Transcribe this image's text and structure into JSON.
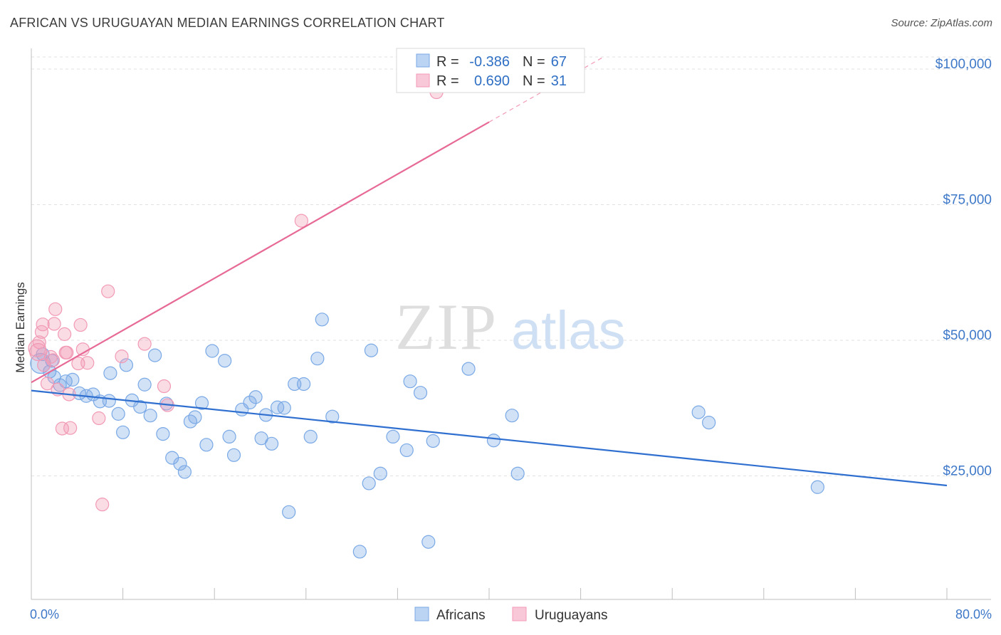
{
  "title": "AFRICAN VS URUGUAYAN MEDIAN EARNINGS CORRELATION CHART",
  "source": "Source: ZipAtlas.com",
  "watermark": {
    "zip": "ZIP",
    "atlas": "atlas"
  },
  "chart_data": {
    "type": "scatter",
    "ylabel": "Median Earnings",
    "xlim": [
      0,
      80
    ],
    "ylim": [
      0,
      105000
    ],
    "x_tick_labels": {
      "min": "0.0%",
      "max": "80.0%"
    },
    "y_ticks": [
      {
        "value": 25000,
        "label": "$25,000"
      },
      {
        "value": 50000,
        "label": "$50,000"
      },
      {
        "value": 75000,
        "label": "$75,000"
      },
      {
        "value": 100000,
        "label": "$100,000"
      }
    ],
    "grid": "horizontal dashed",
    "legend_top": [
      {
        "r_label": "R =",
        "r": "-0.386",
        "n_label": "N =",
        "n": "67",
        "color": "#7aa9e6"
      },
      {
        "r_label": "R =",
        "r": "0.690",
        "n_label": "N =",
        "n": "31",
        "color": "#f29ab5"
      }
    ],
    "series": [
      {
        "name": "Africans",
        "color": "#7aa9e6",
        "line_color": "#2f6fd0",
        "trend": {
          "x0": 0,
          "y0": 38500,
          "x1": 80,
          "y1": 21000
        },
        "points": [
          [
            0.8,
            43500
          ],
          [
            1.0,
            45200
          ],
          [
            1.6,
            42000
          ],
          [
            1.8,
            44000
          ],
          [
            2.0,
            41000
          ],
          [
            2.5,
            39500
          ],
          [
            3.0,
            40200
          ],
          [
            3.6,
            40500
          ],
          [
            4.2,
            38000
          ],
          [
            4.8,
            37500
          ],
          [
            5.4,
            37800
          ],
          [
            6.0,
            36500
          ],
          [
            6.8,
            36600
          ],
          [
            6.9,
            41700
          ],
          [
            7.6,
            34200
          ],
          [
            8.0,
            30800
          ],
          [
            8.3,
            43200
          ],
          [
            8.8,
            36700
          ],
          [
            9.5,
            35500
          ],
          [
            9.9,
            39600
          ],
          [
            10.4,
            33900
          ],
          [
            10.8,
            45000
          ],
          [
            11.5,
            30500
          ],
          [
            11.8,
            36100
          ],
          [
            12.3,
            26100
          ],
          [
            13.0,
            25000
          ],
          [
            13.4,
            23500
          ],
          [
            13.9,
            32800
          ],
          [
            14.3,
            33600
          ],
          [
            14.9,
            36200
          ],
          [
            15.3,
            28500
          ],
          [
            15.8,
            45800
          ],
          [
            16.9,
            44000
          ],
          [
            17.3,
            30000
          ],
          [
            17.7,
            26600
          ],
          [
            18.4,
            35000
          ],
          [
            19.1,
            36300
          ],
          [
            19.6,
            37300
          ],
          [
            20.1,
            29700
          ],
          [
            20.5,
            34000
          ],
          [
            21.0,
            28700
          ],
          [
            21.5,
            35400
          ],
          [
            22.1,
            35300
          ],
          [
            22.5,
            16100
          ],
          [
            23.0,
            39700
          ],
          [
            23.8,
            39700
          ],
          [
            24.4,
            30000
          ],
          [
            25.0,
            44400
          ],
          [
            25.4,
            51600
          ],
          [
            26.3,
            33700
          ],
          [
            28.7,
            8800
          ],
          [
            29.5,
            21400
          ],
          [
            29.7,
            45900
          ],
          [
            30.5,
            23200
          ],
          [
            31.6,
            30000
          ],
          [
            32.8,
            27500
          ],
          [
            33.1,
            40200
          ],
          [
            34.0,
            38100
          ],
          [
            34.7,
            10600
          ],
          [
            35.1,
            29200
          ],
          [
            38.2,
            42500
          ],
          [
            40.4,
            29300
          ],
          [
            42.0,
            33900
          ],
          [
            42.5,
            23200
          ],
          [
            58.3,
            34500
          ],
          [
            59.2,
            32600
          ],
          [
            68.7,
            20700
          ]
        ]
      },
      {
        "name": "Uruguayans",
        "color": "#f29ab5",
        "line_color": "#e76a96",
        "trend": {
          "x0": 0,
          "y0": 40000,
          "x1": 40,
          "y1": 88000
        },
        "trend_dash_to": {
          "x": 50,
          "y": 100000
        },
        "points": [
          [
            0.5,
            46300
          ],
          [
            0.6,
            45600
          ],
          [
            0.7,
            47400
          ],
          [
            0.9,
            49300
          ],
          [
            1.0,
            50700
          ],
          [
            1.1,
            43200
          ],
          [
            1.4,
            39800
          ],
          [
            1.7,
            44700
          ],
          [
            1.9,
            44100
          ],
          [
            2.0,
            50800
          ],
          [
            2.1,
            53500
          ],
          [
            2.3,
            38700
          ],
          [
            2.7,
            31500
          ],
          [
            2.9,
            48900
          ],
          [
            3.0,
            45500
          ],
          [
            3.1,
            45500
          ],
          [
            3.3,
            37800
          ],
          [
            3.4,
            31600
          ],
          [
            4.1,
            43500
          ],
          [
            4.3,
            50600
          ],
          [
            4.5,
            46100
          ],
          [
            4.9,
            43600
          ],
          [
            5.9,
            33400
          ],
          [
            6.2,
            17500
          ],
          [
            6.7,
            56800
          ],
          [
            7.9,
            44800
          ],
          [
            9.9,
            47100
          ],
          [
            11.6,
            39300
          ],
          [
            11.9,
            35800
          ],
          [
            23.6,
            69800
          ],
          [
            35.4,
            93500
          ]
        ]
      }
    ]
  }
}
